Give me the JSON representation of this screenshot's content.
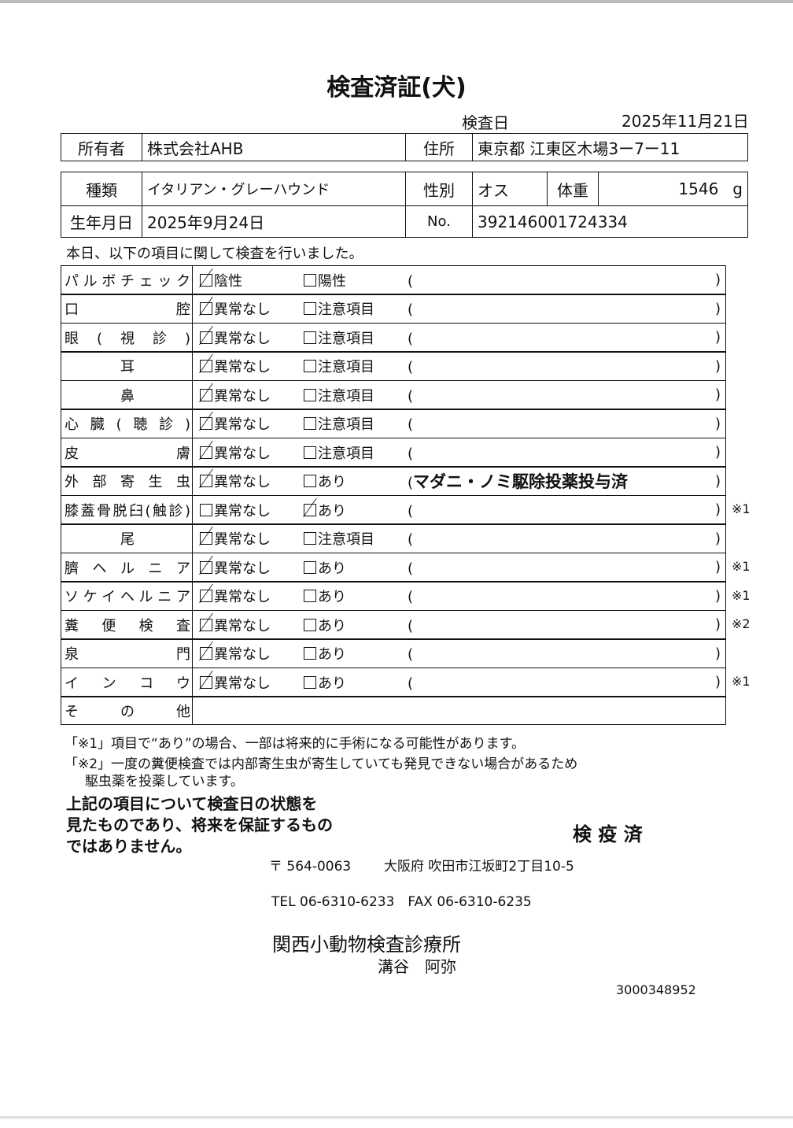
{
  "title": "検査済証(犬)",
  "exam_date_label": "検査日",
  "exam_date": "2025年11月21日",
  "owner": {
    "label": "所有者",
    "value": "株式会社AHB"
  },
  "address": {
    "label": "住所",
    "value": "東京都 江東区木場3ー7ー11"
  },
  "breed": {
    "label": "種類",
    "value": "イタリアン・グレーハウンド"
  },
  "sex": {
    "label": "性別",
    "value": "オス"
  },
  "weight": {
    "label": "体重",
    "value": "1546",
    "unit": "g"
  },
  "birth": {
    "label": "生年月日",
    "value": "2025年9月24日"
  },
  "number": {
    "label": "No.",
    "value": "392146001724334"
  },
  "intro": "本日、以下の項目に関して検査を行いました。",
  "items": [
    {
      "label": "パルボチェック",
      "o1": "陰性",
      "o2": "陽性",
      "note_text": "",
      "mark": "",
      "checked": 1,
      "center": false
    },
    {
      "label": "口腔",
      "o1": "異常なし",
      "o2": "注意項目",
      "note_text": "",
      "mark": "",
      "checked": 1,
      "center": false
    },
    {
      "label": "眼(視診)",
      "o1": "異常なし",
      "o2": "注意項目",
      "note_text": "",
      "mark": "",
      "checked": 1,
      "center": false
    },
    {
      "label": "耳",
      "o1": "異常なし",
      "o2": "注意項目",
      "note_text": "",
      "mark": "",
      "checked": 1,
      "center": true
    },
    {
      "label": "鼻",
      "o1": "異常なし",
      "o2": "注意項目",
      "note_text": "",
      "mark": "",
      "checked": 1,
      "center": true
    },
    {
      "label": "心臓(聴診)",
      "o1": "異常なし",
      "o2": "注意項目",
      "note_text": "",
      "mark": "",
      "checked": 1,
      "center": false
    },
    {
      "label": "皮膚",
      "o1": "異常なし",
      "o2": "注意項目",
      "note_text": "",
      "mark": "",
      "checked": 1,
      "center": false
    },
    {
      "label": "外部寄生虫",
      "o1": "異常なし",
      "o2": "あり",
      "note_text": "マダニ・ノミ駆除投薬投与済",
      "mark": "",
      "checked": 1,
      "center": false
    },
    {
      "label": "膝蓋骨脱臼(触診)",
      "o1": "異常なし",
      "o2": "あり",
      "note_text": "",
      "mark": "※1",
      "checked": 2,
      "center": false
    },
    {
      "label": "尾",
      "o1": "異常なし",
      "o2": "注意項目",
      "note_text": "",
      "mark": "",
      "checked": 1,
      "center": true
    },
    {
      "label": "臍ヘルニア",
      "o1": "異常なし",
      "o2": "あり",
      "note_text": "",
      "mark": "※1",
      "checked": 1,
      "center": false
    },
    {
      "label": "ソケイヘルニア",
      "o1": "異常なし",
      "o2": "あり",
      "note_text": "",
      "mark": "※1",
      "checked": 1,
      "center": false
    },
    {
      "label": "糞便検査",
      "o1": "異常なし",
      "o2": "あり",
      "note_text": "",
      "mark": "※2",
      "checked": 1,
      "center": false
    },
    {
      "label": "泉門",
      "o1": "異常なし",
      "o2": "あり",
      "note_text": "",
      "mark": "",
      "checked": 1,
      "center": false
    },
    {
      "label": "インコウ",
      "o1": "異常なし",
      "o2": "あり",
      "note_text": "",
      "mark": "※1",
      "checked": 1,
      "center": false
    }
  ],
  "other_label": "その他",
  "footnote1": "「※1」項目で“あり”の場合、一部は将来的に手術になる可能性があります。",
  "footnote2a": "「※2」一度の糞便検査では内部寄生虫が寄生していても発見できない場合があるため",
  "footnote2b": "駆虫薬を投薬しています。",
  "disclaimer": [
    "上記の項目について検査日の状態を",
    "見たものであり、将来を保証するもの",
    "ではありません。"
  ],
  "stamp": "検 疫 済",
  "postal": "〒 564-0063",
  "clinic_address": "大阪府 吹田市江坂町2丁目10-5",
  "phone": "TEL 06-6310-6233　FAX 06-6310-6235",
  "clinic_name": "関西小動物検査診療所",
  "vet_name": "溝谷　阿弥",
  "doc_id": "3000348952"
}
